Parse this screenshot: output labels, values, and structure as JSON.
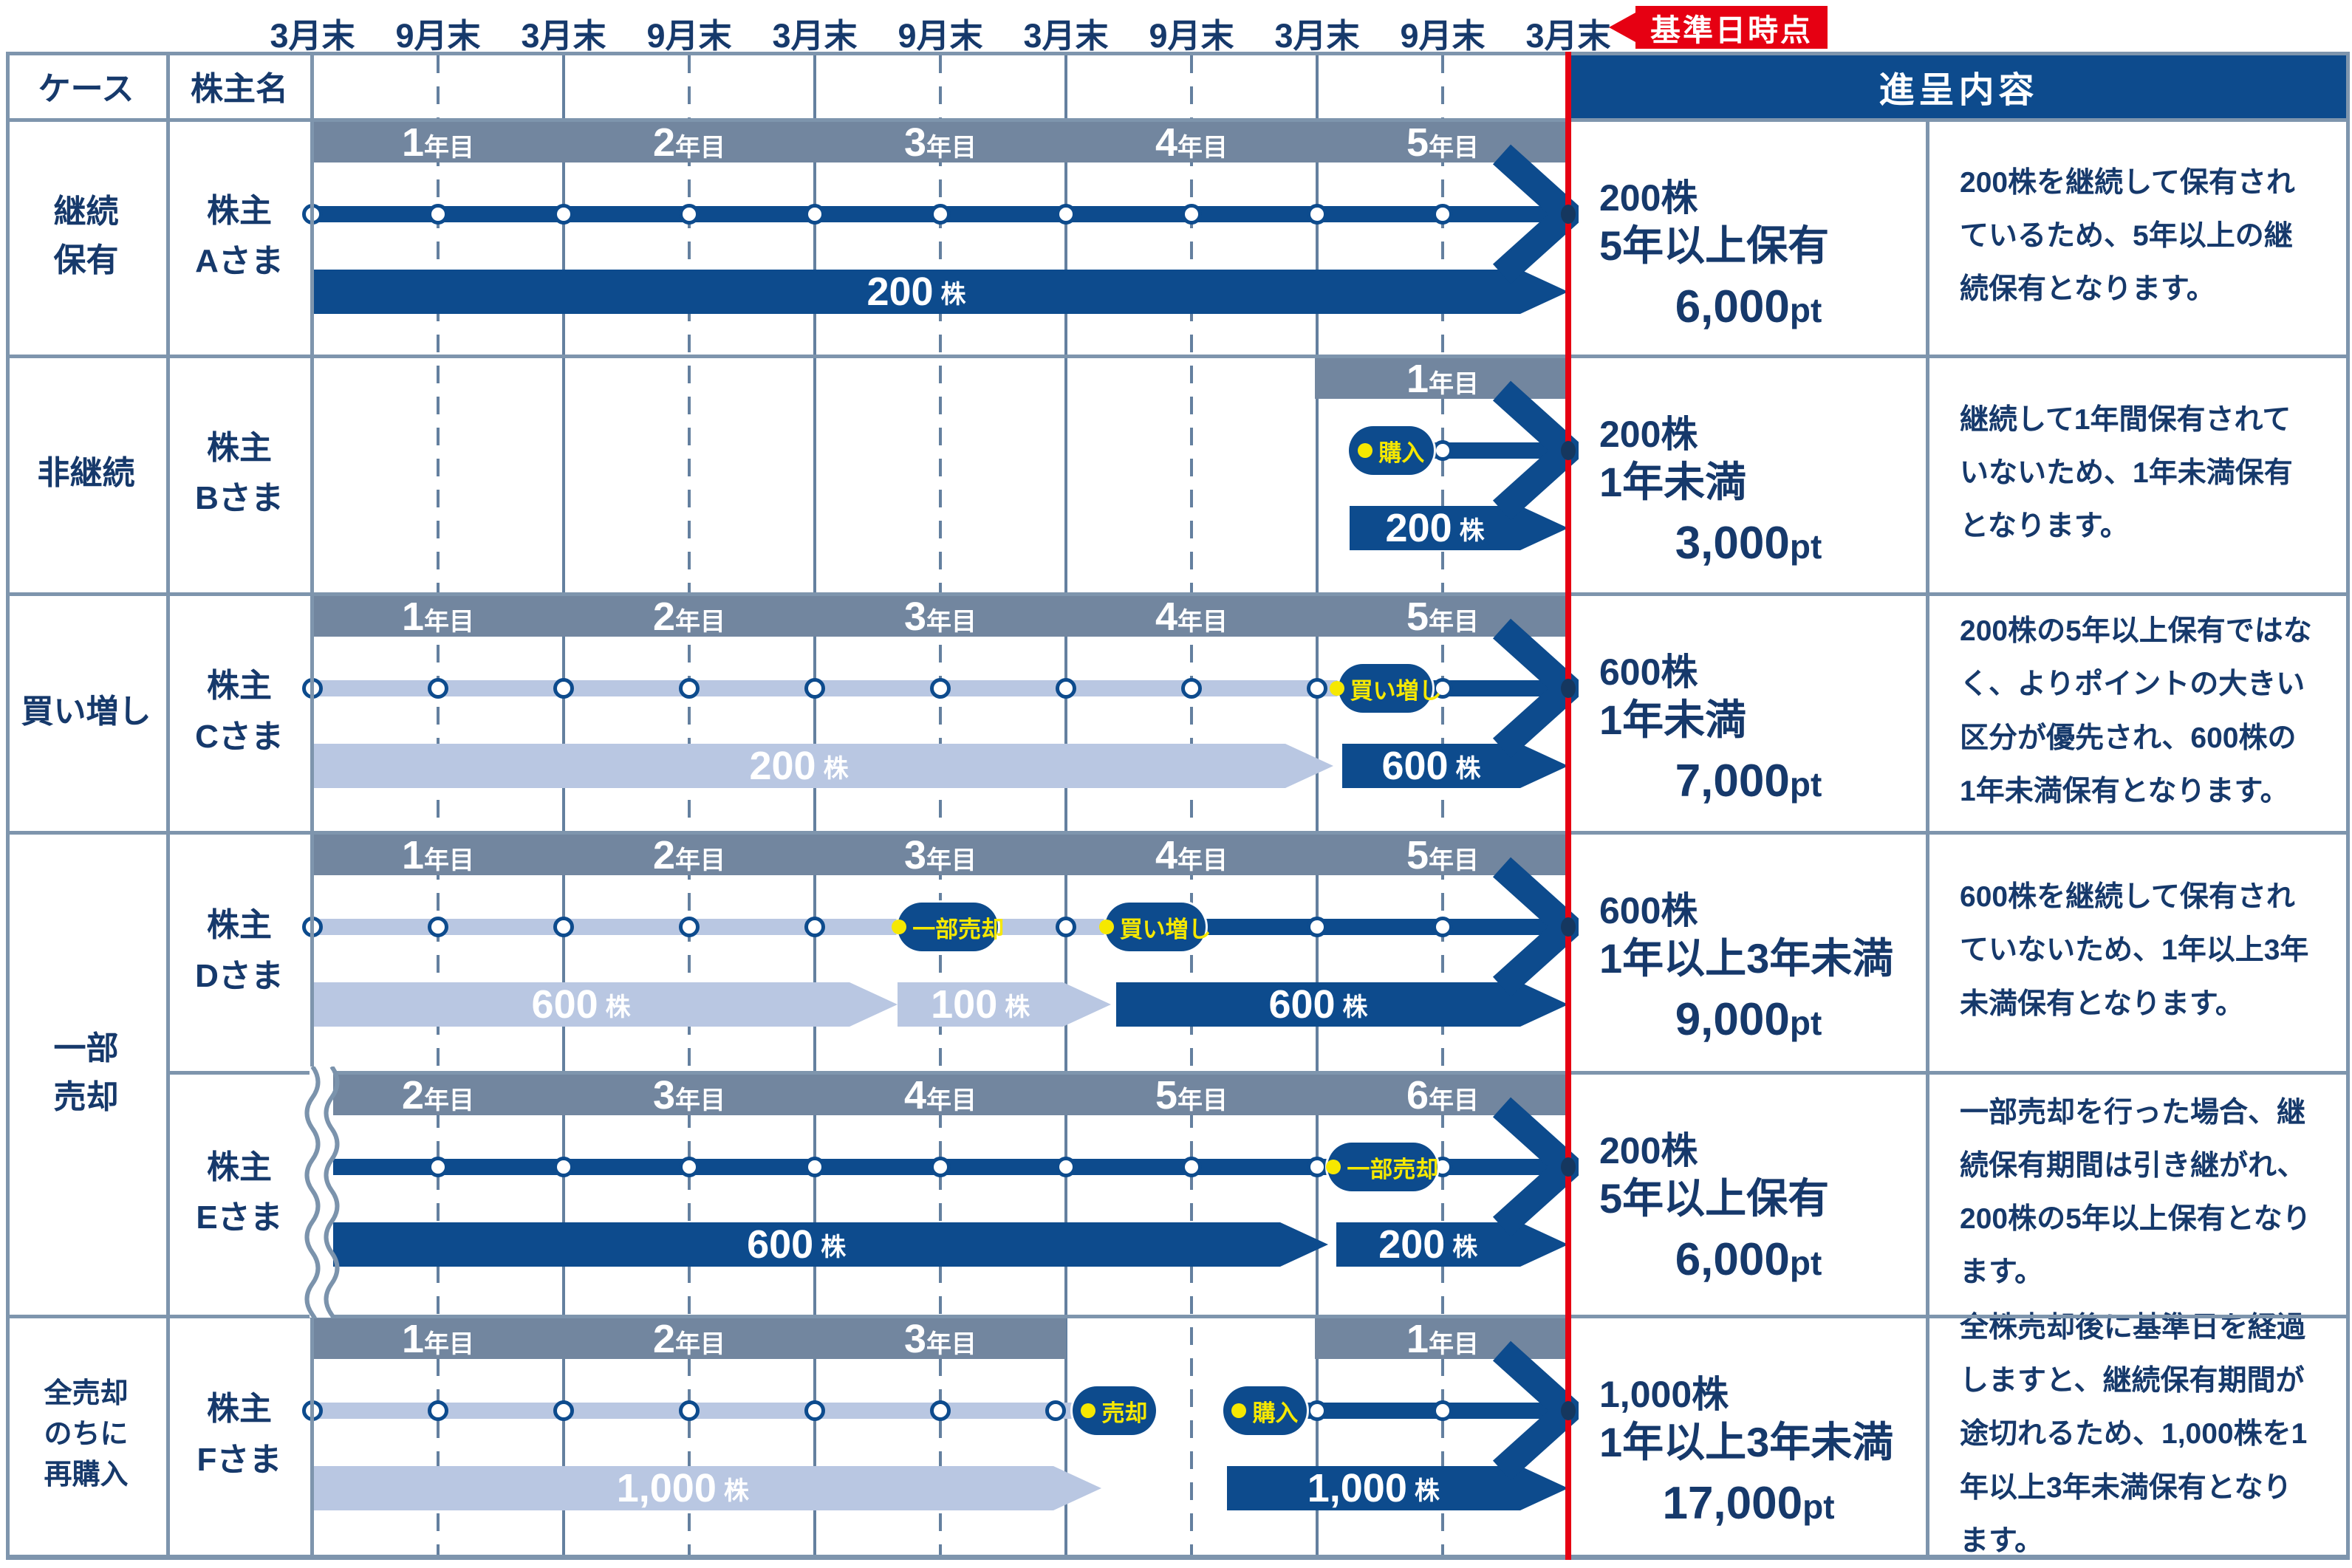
{
  "colors": {
    "navy": "#0d4b8d",
    "light_blue": "#b9c7e2",
    "year_gray": "#72869f",
    "red": "#e60012",
    "yellow": "#f6e800",
    "text_navy": "#16396b"
  },
  "axis": {
    "ticks": [
      "3月末",
      "9月末",
      "3月末",
      "9月末",
      "3月末",
      "9月末",
      "3月末",
      "9月末",
      "3月末",
      "9月末",
      "3月末"
    ],
    "base_date_label": "基準日時点"
  },
  "table_header": {
    "case": "ケース",
    "shareholder": "株主名",
    "benefit": "進呈内容"
  },
  "cases": [
    {
      "lines": [
        "継続",
        "保有"
      ],
      "row_start": 0,
      "row_end": 0,
      "small": false
    },
    {
      "lines": [
        "非継続"
      ],
      "row_start": 1,
      "row_end": 1,
      "small": false
    },
    {
      "lines": [
        "買い増し"
      ],
      "row_start": 2,
      "row_end": 2,
      "small": false
    },
    {
      "lines": [
        "一部",
        "売却"
      ],
      "row_start": 3,
      "row_end": 4,
      "small": false
    },
    {
      "lines": [
        "全売却",
        "のちに",
        "再購入"
      ],
      "row_start": 5,
      "row_end": 5,
      "small": true
    }
  ],
  "rows": [
    {
      "shareholder": [
        "株主",
        "Aさま"
      ],
      "timeline": {
        "headers": [
          {
            "from": 0,
            "to": 10,
            "labels": [
              "1年目",
              "2年目",
              "3年目",
              "4年目",
              "5年目"
            ]
          }
        ],
        "segments": [
          {
            "from": 0,
            "to": 10,
            "color": "dark"
          }
        ],
        "circles": [
          0,
          1,
          2,
          3,
          4,
          5,
          6,
          7,
          8,
          9
        ],
        "pills": [],
        "tear": false,
        "arrow": true,
        "bars": [
          {
            "from": 0,
            "to": 10,
            "color": "dark",
            "amount": "200",
            "unit": "株"
          }
        ]
      },
      "result": {
        "shares": "200株",
        "period": "5年以上保有",
        "points": "6,000",
        "points_unit": "pt"
      },
      "description": "200株を継続して保有されているため、5年以上の継続保有となります。"
    },
    {
      "shareholder": [
        "株主",
        "Bさま"
      ],
      "timeline": {
        "headers": [
          {
            "from": 8,
            "to": 10,
            "labels": [
              "1年目"
            ]
          }
        ],
        "segments": [
          {
            "from": 8.3,
            "to": 10,
            "color": "dark"
          }
        ],
        "circles": [
          9
        ],
        "pills": [
          {
            "t0": 8.25,
            "t1": 8.93,
            "label": "購入"
          }
        ],
        "tear": false,
        "arrow": true,
        "bars": [
          {
            "from": 8.26,
            "to": 10,
            "color": "dark",
            "amount": "200",
            "unit": "株"
          }
        ]
      },
      "result": {
        "shares": "200株",
        "period": "1年未満",
        "points": "3,000",
        "points_unit": "pt"
      },
      "description": "継続して1年間保有されていないため、1年未満保有となります。"
    },
    {
      "shareholder": [
        "株主",
        "Cさま"
      ],
      "timeline": {
        "headers": [
          {
            "from": 0,
            "to": 10,
            "labels": [
              "1年目",
              "2年目",
              "3年目",
              "4年目",
              "5年目"
            ]
          }
        ],
        "segments": [
          {
            "from": 0,
            "to": 8.9,
            "color": "light"
          },
          {
            "from": 8.9,
            "to": 10,
            "color": "dark"
          }
        ],
        "circles": [
          0,
          1,
          2,
          3,
          4,
          5,
          6,
          7,
          8,
          9
        ],
        "pills": [
          {
            "t0": 8.17,
            "t1": 8.92,
            "label": "買い増し"
          }
        ],
        "tear": false,
        "arrow": true,
        "bars": [
          {
            "from": 0,
            "to": 8.13,
            "color": "light",
            "amount": "200",
            "unit": "株"
          },
          {
            "from": 8.2,
            "to": 10,
            "color": "dark",
            "amount": "600",
            "unit": "株"
          }
        ]
      },
      "result": {
        "shares": "600株",
        "period": "1年未満",
        "points": "7,000",
        "points_unit": "pt"
      },
      "description": "200株の5年以上保有ではなく、よりポイントの大きい区分が優先され、600株の1年未満保有となります。"
    },
    {
      "shareholder": [
        "株主",
        "Dさま"
      ],
      "timeline": {
        "headers": [
          {
            "from": 0,
            "to": 10,
            "labels": [
              "1年目",
              "2年目",
              "3年目",
              "4年目",
              "5年目"
            ]
          }
        ],
        "segments": [
          {
            "from": 0,
            "to": 6.31,
            "color": "light"
          },
          {
            "from": 6.31,
            "to": 10,
            "color": "dark"
          }
        ],
        "circles": [
          0,
          1,
          2,
          3,
          4,
          6,
          8,
          9
        ],
        "pills": [
          {
            "t0": 4.66,
            "t1": 5.46,
            "label": "一部売却"
          },
          {
            "t0": 6.31,
            "t1": 7.11,
            "label": "買い増し"
          }
        ],
        "tear": false,
        "arrow": true,
        "bars": [
          {
            "from": 0,
            "to": 4.66,
            "color": "light",
            "amount": "600",
            "unit": "株"
          },
          {
            "from": 4.66,
            "to": 6.36,
            "color": "light",
            "amount": "100",
            "unit": "株"
          },
          {
            "from": 6.4,
            "to": 10,
            "color": "dark",
            "amount": "600",
            "unit": "株"
          }
        ]
      },
      "result": {
        "shares": "600株",
        "period": "1年以上3年未満",
        "points": "9,000",
        "points_unit": "pt"
      },
      "description": "600株を継続して保有されていないため、1年以上3年未満保有となります。"
    },
    {
      "shareholder": [
        "株主",
        "Eさま"
      ],
      "timeline": {
        "headers": [
          {
            "from": 0,
            "to": 10,
            "labels": [
              "2年目",
              "3年目",
              "4年目",
              "5年目",
              "6年目"
            ]
          }
        ],
        "segments": [
          {
            "from": 0,
            "to": 10,
            "color": "dark"
          }
        ],
        "circles": [
          1,
          2,
          3,
          4,
          5,
          6,
          7,
          8,
          9
        ],
        "pills": [
          {
            "t0": 8.08,
            "t1": 8.96,
            "label": "一部売却"
          }
        ],
        "tear": true,
        "arrow": true,
        "bars": [
          {
            "from": 0,
            "to": 8.09,
            "color": "dark",
            "amount": "600",
            "unit": "株"
          },
          {
            "from": 8.15,
            "to": 10,
            "color": "dark",
            "amount": "200",
            "unit": "株"
          }
        ]
      },
      "result": {
        "shares": "200株",
        "period": "5年以上保有",
        "points": "6,000",
        "points_unit": "pt"
      },
      "description": "一部売却を行った場合、継続保有期間は引き継がれ、200株の5年以上保有となります。"
    },
    {
      "shareholder": [
        "株主",
        "Fさま"
      ],
      "timeline": {
        "headers": [
          {
            "from": 0,
            "to": 6,
            "labels": [
              "1年目",
              "2年目",
              "3年目"
            ]
          },
          {
            "from": 8,
            "to": 10,
            "labels": [
              "1年目"
            ]
          }
        ],
        "segments": [
          {
            "from": 0,
            "to": 6.05,
            "color": "light"
          },
          {
            "from": 7.25,
            "to": 10,
            "color": "dark"
          }
        ],
        "circles": [
          0,
          1,
          2,
          3,
          4,
          5,
          5.92,
          8,
          9
        ],
        "pills": [
          {
            "t0": 6.05,
            "t1": 6.72,
            "label": "売却"
          },
          {
            "t0": 7.25,
            "t1": 7.92,
            "label": "購入"
          }
        ],
        "tear": false,
        "arrow": true,
        "bars": [
          {
            "from": 0,
            "to": 6.28,
            "color": "light",
            "amount": "1,000",
            "unit": "株"
          },
          {
            "from": 7.28,
            "to": 10,
            "color": "dark",
            "amount": "1,000",
            "unit": "株"
          }
        ]
      },
      "result": {
        "shares": "1,000株",
        "period": "1年以上3年未満",
        "points": "17,000",
        "points_unit": "pt"
      },
      "description": "全株売却後に基準日を経過しますと、継続保有期間が途切れるため、1,000株を1年以上3年未満保有となります。"
    }
  ]
}
